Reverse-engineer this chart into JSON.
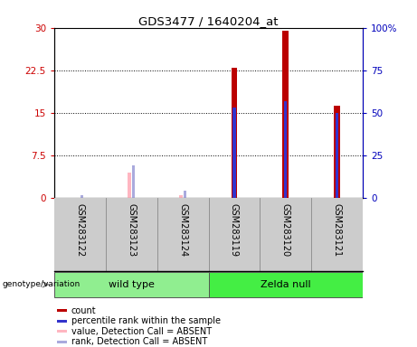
{
  "title": "GDS3477 / 1640204_at",
  "samples": [
    "GSM283122",
    "GSM283123",
    "GSM283124",
    "GSM283119",
    "GSM283120",
    "GSM283121"
  ],
  "red_bars": [
    0,
    0,
    0,
    23.0,
    29.5,
    16.3
  ],
  "blue_bars": [
    0,
    0,
    0,
    16.0,
    17.0,
    15.0
  ],
  "pink_bars": [
    0,
    4.5,
    0.5,
    0,
    0,
    0
  ],
  "lavender_bars": [
    0.4,
    5.8,
    1.3,
    0,
    0,
    0
  ],
  "ylim_left": [
    0,
    30
  ],
  "ylim_right": [
    0,
    100
  ],
  "yticks_left": [
    0,
    7.5,
    15,
    22.5,
    30
  ],
  "ytick_labels_left": [
    "0",
    "7.5",
    "15",
    "22.5",
    "30"
  ],
  "yticks_right": [
    0,
    25,
    50,
    75,
    100
  ],
  "ytick_labels_right": [
    "0",
    "25",
    "50",
    "75",
    "100%"
  ],
  "red_color": "#BB0000",
  "blue_color": "#3333CC",
  "pink_color": "#FFB6C1",
  "lavender_color": "#AAAADD",
  "left_label_color": "#CC0000",
  "right_label_color": "#0000BB",
  "plot_bg": "#ffffff",
  "sample_bg": "#CCCCCC",
  "group_colors": [
    "#90EE90",
    "#44EE44"
  ],
  "legend_items": [
    [
      "count",
      "#BB0000"
    ],
    [
      "percentile rank within the sample",
      "#3333CC"
    ],
    [
      "value, Detection Call = ABSENT",
      "#FFB6C1"
    ],
    [
      "rank, Detection Call = ABSENT",
      "#AAAADD"
    ]
  ]
}
